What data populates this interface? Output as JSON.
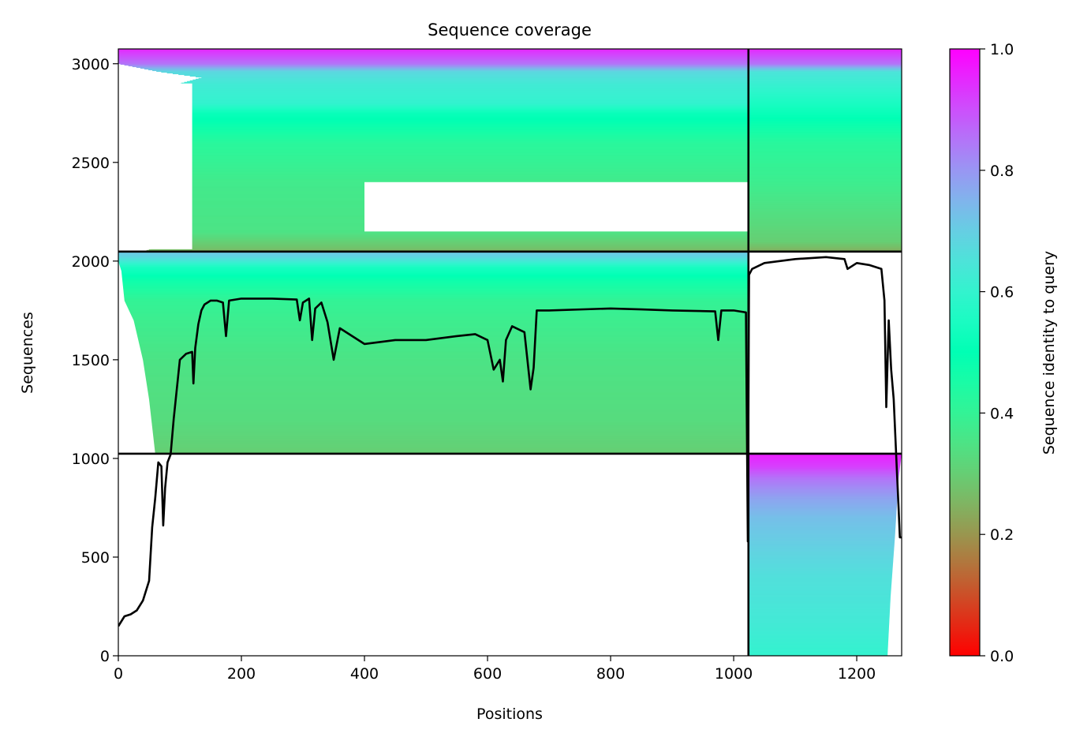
{
  "chart_data": {
    "type": "heatmap",
    "title": "Sequence coverage",
    "xlabel": "Positions",
    "ylabel": "Sequences",
    "xlim": [
      0,
      1273
    ],
    "ylim": [
      0,
      3075
    ],
    "xticks": [
      0,
      200,
      400,
      600,
      800,
      1000,
      1200
    ],
    "yticks": [
      0,
      500,
      1000,
      1500,
      2000,
      2500,
      3000
    ],
    "grid": false,
    "colormap": "rainbow_r",
    "colorbar": {
      "label": "Sequence identity to query",
      "range": [
        0,
        1
      ],
      "ticks": [
        0.0,
        0.2,
        0.4,
        0.6,
        0.8,
        1.0
      ],
      "tick_labels": [
        "0.0",
        "0.2",
        "0.4",
        "0.6",
        "0.8",
        "1.0"
      ]
    },
    "divider_lines": {
      "vertical_x": 1024,
      "horizontal_y": [
        1024,
        2048
      ]
    },
    "blocks": [
      {
        "x_range": [
          0,
          1024
        ],
        "y_range": [
          2048,
          3075
        ],
        "identity_gradient": [
          [
            2048,
            0.22
          ],
          [
            2060,
            0.27
          ],
          [
            2150,
            0.35
          ],
          [
            2400,
            0.37
          ],
          [
            2600,
            0.42
          ],
          [
            2750,
            0.52
          ],
          [
            2800,
            0.6
          ],
          [
            2900,
            0.63
          ],
          [
            2960,
            0.68
          ],
          [
            3000,
            0.85
          ],
          [
            3075,
            0.95
          ]
        ],
        "start_profile": [
          [
            2048,
            40
          ],
          [
            2100,
            90
          ],
          [
            2400,
            95
          ],
          [
            2600,
            90
          ],
          [
            2700,
            80
          ],
          [
            2800,
            95
          ],
          [
            2900,
            100
          ],
          [
            2930,
            135
          ],
          [
            2960,
            65
          ],
          [
            3000,
            0
          ],
          [
            3075,
            0
          ]
        ],
        "gaps": [
          {
            "x": [
              400,
              1024
            ],
            "y": [
              2150,
              2400
            ]
          },
          {
            "x": [
              0,
              120
            ],
            "y": [
              2060,
              2900
            ]
          }
        ]
      },
      {
        "x_range": [
          1024,
          1273
        ],
        "y_range": [
          2048,
          3075
        ],
        "identity_gradient": [
          [
            2048,
            0.24
          ],
          [
            2100,
            0.3
          ],
          [
            2400,
            0.38
          ],
          [
            2600,
            0.42
          ],
          [
            2800,
            0.55
          ],
          [
            2960,
            0.65
          ],
          [
            3000,
            0.85
          ],
          [
            3075,
            0.95
          ]
        ]
      },
      {
        "x_range": [
          0,
          1024
        ],
        "y_range": [
          1024,
          2048
        ],
        "identity_gradient": [
          [
            1024,
            0.3
          ],
          [
            1200,
            0.33
          ],
          [
            1500,
            0.35
          ],
          [
            1700,
            0.38
          ],
          [
            1800,
            0.4
          ],
          [
            1900,
            0.47
          ],
          [
            1970,
            0.55
          ],
          [
            2020,
            0.68
          ],
          [
            2048,
            0.72
          ]
        ],
        "start_profile": [
          [
            1024,
            60
          ],
          [
            1300,
            50
          ],
          [
            1500,
            40
          ],
          [
            1700,
            25
          ],
          [
            1800,
            10
          ],
          [
            1950,
            5
          ],
          [
            2000,
            0
          ],
          [
            2048,
            0
          ]
        ]
      },
      {
        "x_range": [
          1024,
          1273
        ],
        "y_range": [
          0,
          1024
        ],
        "identity_gradient": [
          [
            0,
            0.6
          ],
          [
            150,
            0.63
          ],
          [
            400,
            0.66
          ],
          [
            700,
            0.73
          ],
          [
            800,
            0.78
          ],
          [
            900,
            0.85
          ],
          [
            960,
            0.92
          ],
          [
            1024,
            0.96
          ]
        ],
        "end_profile": [
          [
            0,
            1250
          ],
          [
            300,
            1255
          ],
          [
            600,
            1262
          ],
          [
            900,
            1268
          ],
          [
            1024,
            1273
          ]
        ]
      }
    ],
    "coverage_line": {
      "x": [
        0,
        10,
        20,
        30,
        40,
        50,
        55,
        60,
        65,
        70,
        73,
        76,
        80,
        85,
        90,
        100,
        110,
        120,
        122,
        125,
        130,
        135,
        140,
        150,
        160,
        170,
        175,
        180,
        200,
        250,
        290,
        295,
        300,
        310,
        315,
        320,
        330,
        340,
        350,
        360,
        380,
        400,
        450,
        500,
        550,
        580,
        600,
        610,
        620,
        625,
        630,
        640,
        660,
        670,
        675,
        680,
        700,
        800,
        850,
        900,
        970,
        975,
        980,
        1000,
        1020,
        1023,
        1025,
        1030,
        1050,
        1100,
        1150,
        1180,
        1185,
        1200,
        1220,
        1240,
        1245,
        1248,
        1252,
        1256,
        1260,
        1265,
        1268,
        1270,
        1273
      ],
      "y": [
        150,
        200,
        210,
        230,
        280,
        380,
        650,
        800,
        980,
        960,
        660,
        850,
        980,
        1020,
        1200,
        1500,
        1530,
        1540,
        1380,
        1560,
        1680,
        1750,
        1780,
        1800,
        1800,
        1790,
        1620,
        1800,
        1810,
        1810,
        1805,
        1700,
        1790,
        1810,
        1600,
        1760,
        1790,
        1690,
        1500,
        1660,
        1620,
        1580,
        1600,
        1600,
        1620,
        1630,
        1600,
        1450,
        1500,
        1390,
        1600,
        1670,
        1640,
        1350,
        1460,
        1750,
        1750,
        1760,
        1755,
        1750,
        1745,
        1600,
        1750,
        1750,
        1740,
        580,
        1930,
        1960,
        1990,
        2010,
        2020,
        2010,
        1960,
        1990,
        1980,
        1960,
        1800,
        1260,
        1700,
        1450,
        1300,
        950,
        750,
        600,
        600
      ]
    }
  }
}
